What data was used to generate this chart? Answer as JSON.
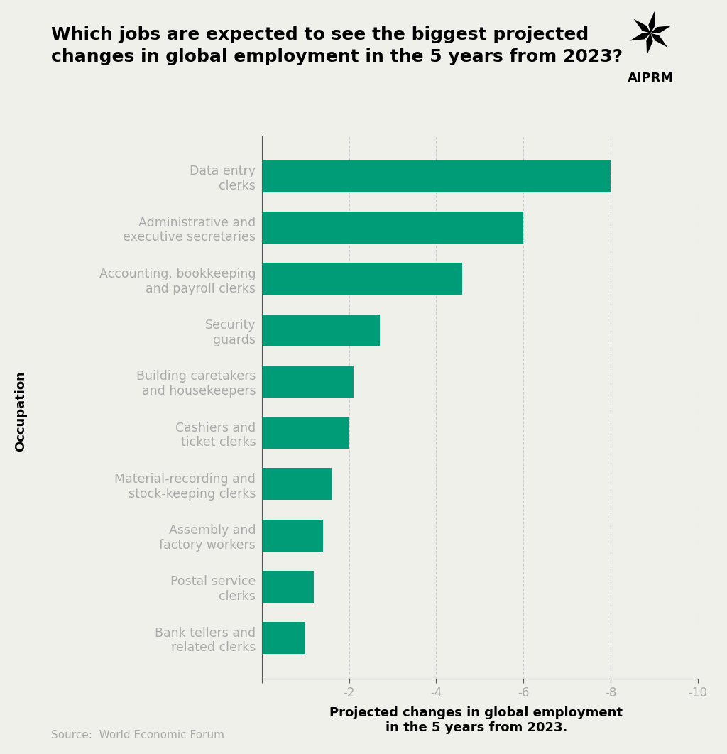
{
  "title": "Which jobs are expected to see the biggest projected\nchanges in global employment in the 5 years from 2023?",
  "categories": [
    "Bank tellers and\nrelated clerks",
    "Postal service\nclerks",
    "Assembly and\nfactory workers",
    "Material-recording and\nstock-keeping clerks",
    "Cashiers and\nticket clerks",
    "Building caretakers\nand housekeepers",
    "Security\nguards",
    "Accounting, bookkeeping\nand payroll clerks",
    "Administrative and\nexecutive secretaries",
    "Data entry\nclerks"
  ],
  "values": [
    -1.0,
    -1.2,
    -1.4,
    -1.6,
    -2.0,
    -2.1,
    -2.7,
    -4.6,
    -6.0,
    -8.0
  ],
  "bar_color": "#009B77",
  "background_color": "#f0f0eb",
  "xlabel_line1": "Projected changes in global employment",
  "xlabel_line2": "in the 5 years from 2023.",
  "ylabel": "Occupation",
  "source": "Source:  World Economic Forum",
  "title_fontsize": 18,
  "label_fontsize": 12.5,
  "tick_fontsize": 12,
  "ylabel_fontsize": 13,
  "xlabel_fontsize": 13,
  "source_fontsize": 11,
  "aiprm_fontsize": 13
}
